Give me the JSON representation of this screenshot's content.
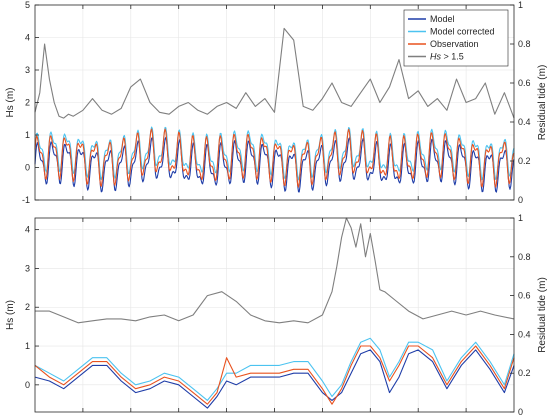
{
  "chart_data": [
    {
      "type": "line",
      "panel": "top",
      "ylabel_left": "Hs (m)",
      "ylabel_right": "Residual tide (m)",
      "ylim_left": [
        -1,
        5
      ],
      "ylim_right": [
        0,
        1
      ],
      "yticks_left": [
        "-1",
        "0",
        "1",
        "2",
        "3",
        "4",
        "5"
      ],
      "yticks_right": [
        "0",
        "0.2",
        "0.4",
        "0.6",
        "0.8",
        "1"
      ],
      "grid": true,
      "legend_position": "top-right",
      "legend": [
        {
          "label": "Model",
          "color": "#1f3da8"
        },
        {
          "label": "Model corrected",
          "color": "#4cc3f0"
        },
        {
          "label": "Observation",
          "color": "#e8521f"
        },
        {
          "label_prefix": "Hs",
          "label_suffix": " > 1.5",
          "color": "#7f7f7f"
        }
      ],
      "series": [
        {
          "name": "Hs > 1.5",
          "axis": "right",
          "color": "#7f7f7f",
          "x": [
            0,
            1,
            2,
            3,
            4,
            5,
            6,
            7,
            8,
            10,
            12,
            14,
            16,
            18,
            20,
            22,
            24,
            26,
            28,
            30,
            32,
            34,
            36,
            38,
            40,
            42,
            44,
            46,
            48,
            50,
            52,
            54,
            56,
            58,
            60,
            62,
            64,
            66,
            68,
            70,
            72,
            74,
            76,
            78,
            80,
            82,
            84,
            86,
            88,
            90,
            92,
            94,
            96,
            98,
            100
          ],
          "y": [
            0.45,
            0.55,
            0.8,
            0.62,
            0.5,
            0.43,
            0.42,
            0.44,
            0.43,
            0.46,
            0.52,
            0.46,
            0.44,
            0.47,
            0.58,
            0.62,
            0.5,
            0.45,
            0.44,
            0.48,
            0.5,
            0.46,
            0.44,
            0.48,
            0.5,
            0.47,
            0.55,
            0.48,
            0.52,
            0.45,
            0.88,
            0.82,
            0.48,
            0.46,
            0.52,
            0.6,
            0.5,
            0.48,
            0.55,
            0.62,
            0.5,
            0.58,
            0.72,
            0.52,
            0.56,
            0.48,
            0.52,
            0.46,
            0.62,
            0.5,
            0.52,
            0.6,
            0.44,
            0.55,
            0.42
          ]
        },
        {
          "name": "Model",
          "axis": "left",
          "color": "#1f3da8",
          "spread": 0.95,
          "mean": 0.15,
          "cycles": 34,
          "phase": 0.0,
          "bias": -0.05
        },
        {
          "name": "Model corrected",
          "axis": "left",
          "color": "#4cc3f0",
          "spread": 0.9,
          "mean": 0.35,
          "cycles": 34,
          "phase": 0.1,
          "bias": 0.1
        },
        {
          "name": "Observation",
          "axis": "left",
          "color": "#e8521f",
          "spread": 1.0,
          "mean": 0.3,
          "cycles": 34,
          "phase": 0.2,
          "bias": 0.0
        }
      ]
    },
    {
      "type": "line",
      "panel": "bottom",
      "ylabel_left": "Hs (m)",
      "ylabel_right": "Residual tide (m)",
      "ylim_left": [
        -0.7,
        4.3
      ],
      "ylim_right": [
        0,
        1
      ],
      "yticks_left": [
        "0",
        "1",
        "2",
        "3",
        "4"
      ],
      "yticks_right": [
        "0",
        "0.2",
        "0.4",
        "0.6",
        "0.8",
        "1"
      ],
      "grid": true,
      "series": [
        {
          "name": "Hs > 1.5",
          "axis": "right",
          "color": "#7f7f7f",
          "x": [
            0,
            3,
            6,
            9,
            12,
            15,
            18,
            21,
            24,
            27,
            30,
            33,
            36,
            39,
            42,
            45,
            48,
            51,
            54,
            57,
            60,
            62,
            63,
            64,
            65,
            66,
            67,
            68,
            69,
            70,
            71,
            72,
            73,
            75,
            78,
            81,
            84,
            87,
            90,
            93,
            96,
            100
          ],
          "y": [
            0.52,
            0.52,
            0.49,
            0.46,
            0.47,
            0.48,
            0.48,
            0.47,
            0.49,
            0.5,
            0.47,
            0.5,
            0.6,
            0.62,
            0.57,
            0.5,
            0.47,
            0.46,
            0.47,
            0.46,
            0.5,
            0.62,
            0.75,
            0.9,
            1.0,
            0.95,
            0.85,
            0.97,
            0.8,
            0.92,
            0.78,
            0.63,
            0.62,
            0.58,
            0.52,
            0.48,
            0.5,
            0.52,
            0.5,
            0.52,
            0.5,
            0.48
          ]
        },
        {
          "name": "Model",
          "axis": "left",
          "color": "#1f3da8",
          "x": [
            0,
            3,
            6,
            9,
            12,
            15,
            18,
            21,
            24,
            27,
            30,
            33,
            36,
            38,
            40,
            42,
            45,
            48,
            51,
            54,
            57,
            60,
            62,
            64,
            66,
            68,
            70,
            72,
            74,
            76,
            78,
            80,
            83,
            86,
            89,
            92,
            95,
            98,
            100
          ],
          "y": [
            0.2,
            0.1,
            -0.1,
            0.2,
            0.5,
            0.5,
            0.1,
            -0.2,
            -0.1,
            0.1,
            0.0,
            -0.3,
            -0.6,
            -0.3,
            0.1,
            0.0,
            0.2,
            0.2,
            0.2,
            0.3,
            0.3,
            -0.2,
            -0.4,
            -0.2,
            0.3,
            0.8,
            0.9,
            0.6,
            -0.2,
            0.2,
            0.8,
            0.9,
            0.6,
            -0.1,
            0.5,
            0.9,
            0.4,
            -0.2,
            0.5
          ]
        },
        {
          "name": "Model corrected",
          "axis": "left",
          "color": "#4cc3f0",
          "x": [
            0,
            3,
            6,
            9,
            12,
            15,
            18,
            21,
            24,
            27,
            30,
            33,
            36,
            38,
            40,
            42,
            45,
            48,
            51,
            54,
            57,
            60,
            62,
            64,
            66,
            68,
            70,
            72,
            74,
            76,
            78,
            80,
            83,
            86,
            89,
            92,
            95,
            98,
            100
          ],
          "y": [
            0.5,
            0.3,
            0.1,
            0.4,
            0.7,
            0.7,
            0.3,
            0.0,
            0.1,
            0.3,
            0.2,
            -0.1,
            -0.4,
            -0.1,
            0.3,
            0.3,
            0.5,
            0.5,
            0.5,
            0.6,
            0.6,
            0.1,
            -0.3,
            0.0,
            0.6,
            1.1,
            1.2,
            0.9,
            0.2,
            0.6,
            1.1,
            1.1,
            0.9,
            0.1,
            0.7,
            1.1,
            0.6,
            0.0,
            0.8
          ]
        },
        {
          "name": "Observation",
          "axis": "left",
          "color": "#e8521f",
          "x": [
            0,
            3,
            6,
            9,
            12,
            15,
            18,
            21,
            24,
            27,
            30,
            33,
            36,
            38,
            40,
            42,
            45,
            48,
            51,
            54,
            57,
            60,
            62,
            64,
            66,
            68,
            70,
            72,
            74,
            76,
            78,
            80,
            83,
            86,
            89,
            92,
            95,
            98,
            100
          ],
          "y": [
            0.5,
            0.2,
            0.0,
            0.3,
            0.6,
            0.6,
            0.2,
            -0.1,
            0.0,
            0.2,
            0.1,
            -0.2,
            -0.5,
            -0.2,
            0.7,
            0.2,
            0.3,
            0.3,
            0.3,
            0.4,
            0.4,
            -0.1,
            -0.5,
            -0.1,
            0.5,
            1.0,
            1.0,
            0.7,
            0.1,
            0.5,
            1.0,
            1.0,
            0.7,
            0.0,
            0.6,
            1.0,
            0.5,
            -0.1,
            0.7
          ]
        }
      ]
    }
  ]
}
